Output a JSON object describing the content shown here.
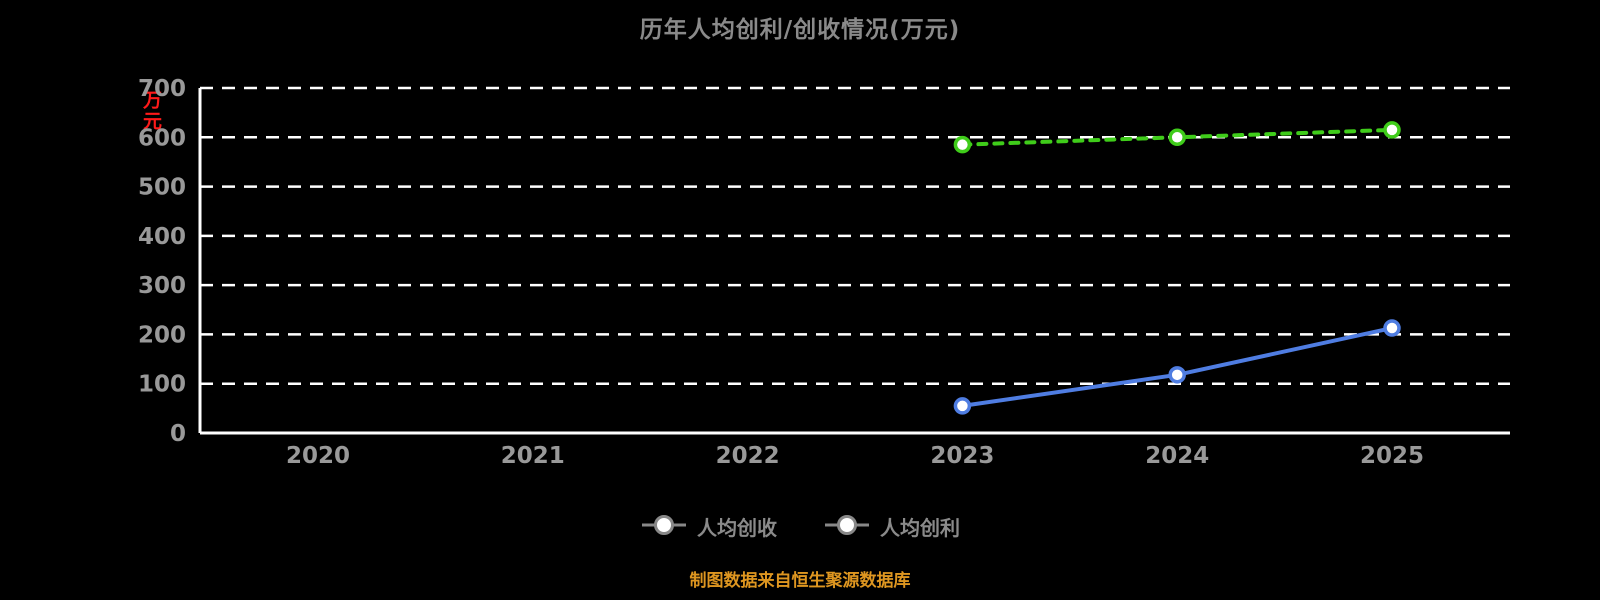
{
  "chart_data": {
    "type": "line",
    "title": "历年人均创利/创收情况(万元)",
    "ylabel": "万元",
    "x": [
      "2020",
      "2021",
      "2022",
      "2023",
      "2024",
      "2025"
    ],
    "ylim": [
      0,
      700
    ],
    "yticks": [
      0,
      100,
      200,
      300,
      400,
      500,
      600,
      700
    ],
    "grid": true,
    "legend_position": "bottom",
    "series": [
      {
        "name": "人均创收",
        "color": "#3fcc1a",
        "line_style": "dashed",
        "values": [
          null,
          null,
          null,
          585,
          600,
          615
        ]
      },
      {
        "name": "人均创利",
        "color": "#4f7de2",
        "line_style": "solid",
        "values": [
          null,
          null,
          null,
          55,
          118,
          213
        ]
      }
    ],
    "footer": "制图数据来自恒生聚源数据库"
  },
  "colors": {
    "background": "#000000",
    "grid": "#ffffff",
    "axis_line": "#ffffff",
    "axis_text": "#999999",
    "title_text": "#8a8a8a",
    "unit_text": "#ff1a1a",
    "legend_text": "#8a8a8a",
    "footer_text": "#de9620"
  }
}
